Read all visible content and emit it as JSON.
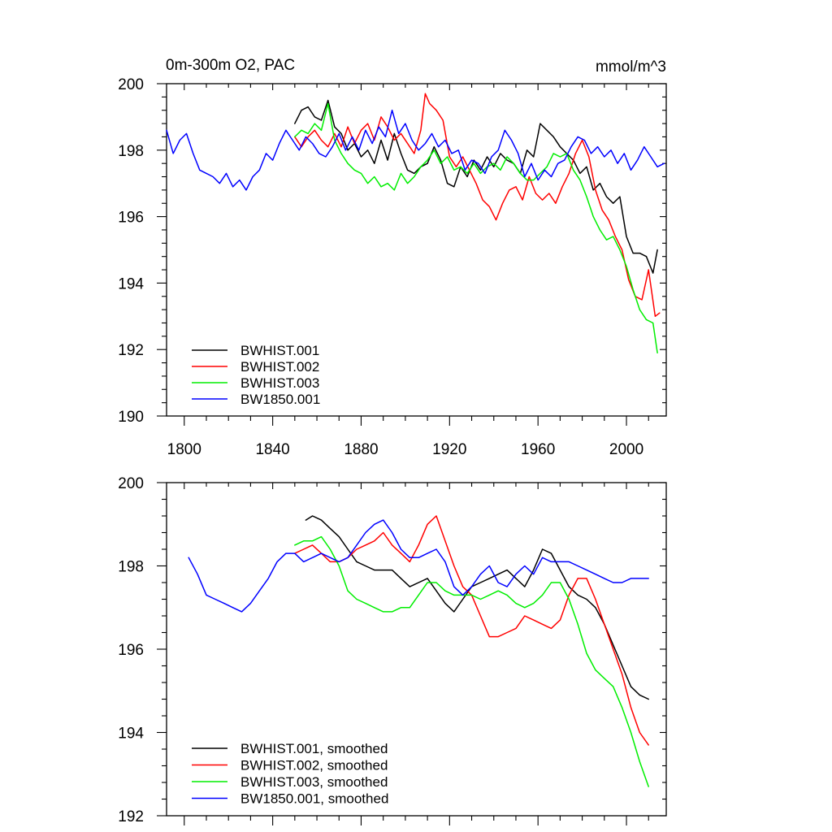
{
  "chart_data": [
    {
      "type": "line",
      "title": "0m-300m O2, PAC",
      "units": "mmol/m^3",
      "xlim": [
        1792,
        2018
      ],
      "ylim": [
        190,
        200
      ],
      "x_ticks": [
        1800,
        1840,
        1880,
        1920,
        1960,
        2000
      ],
      "y_ticks": [
        190,
        192,
        194,
        196,
        198,
        200
      ],
      "x_tick_labels": [
        "1800",
        "1840",
        "1880",
        "1920",
        "1960",
        "2000"
      ],
      "y_tick_labels": [
        "190",
        "192",
        "194",
        "196",
        "198",
        "200"
      ],
      "grid": false,
      "legend_position": "bottom-left",
      "series": [
        {
          "name": "BWHIST.001",
          "color": "#000000",
          "x": [
            1850,
            1853,
            1856,
            1859,
            1862,
            1865,
            1868,
            1871,
            1874,
            1877,
            1880,
            1883,
            1886,
            1889,
            1892,
            1895,
            1898,
            1901,
            1904,
            1907,
            1910,
            1913,
            1916,
            1919,
            1922,
            1925,
            1928,
            1931,
            1934,
            1937,
            1940,
            1943,
            1946,
            1949,
            1952,
            1955,
            1958,
            1961,
            1964,
            1967,
            1970,
            1973,
            1976,
            1979,
            1982,
            1985,
            1988,
            1991,
            1994,
            1997,
            2000,
            2003,
            2006,
            2009,
            2012,
            2014
          ],
          "y": [
            198.8,
            199.2,
            199.3,
            199.0,
            198.9,
            199.5,
            198.7,
            198.5,
            198.0,
            198.2,
            197.8,
            198.0,
            197.6,
            198.3,
            197.7,
            198.5,
            197.9,
            197.4,
            197.3,
            197.5,
            197.6,
            198.1,
            197.7,
            197.0,
            196.9,
            197.5,
            197.2,
            197.7,
            197.4,
            197.8,
            197.5,
            197.9,
            197.7,
            197.6,
            197.3,
            198.0,
            197.8,
            198.8,
            198.6,
            198.4,
            198.1,
            197.9,
            197.7,
            197.3,
            197.5,
            196.8,
            197.0,
            196.6,
            196.4,
            196.6,
            195.4,
            194.9,
            194.9,
            194.8,
            194.3,
            195.0
          ]
        },
        {
          "name": "BWHIST.002",
          "color": "#ff0000",
          "x": [
            1850,
            1853,
            1856,
            1859,
            1862,
            1865,
            1868,
            1871,
            1874,
            1877,
            1880,
            1883,
            1886,
            1889,
            1892,
            1895,
            1898,
            1901,
            1904,
            1907,
            1909,
            1911,
            1914,
            1917,
            1920,
            1923,
            1926,
            1929,
            1932,
            1935,
            1938,
            1941,
            1944,
            1947,
            1950,
            1953,
            1956,
            1959,
            1962,
            1965,
            1968,
            1971,
            1974,
            1977,
            1980,
            1983,
            1986,
            1989,
            1992,
            1995,
            1998,
            2001,
            2004,
            2007,
            2010,
            2013,
            2015
          ],
          "y": [
            198.4,
            198.1,
            198.4,
            198.6,
            198.3,
            198.1,
            198.5,
            198.1,
            198.7,
            198.2,
            198.6,
            198.8,
            198.3,
            199.0,
            198.7,
            198.3,
            198.5,
            198.2,
            197.9,
            198.6,
            199.7,
            199.4,
            199.2,
            198.9,
            197.8,
            197.5,
            197.8,
            197.4,
            197.0,
            196.5,
            196.3,
            195.9,
            196.4,
            196.8,
            196.9,
            196.5,
            197.2,
            196.7,
            196.5,
            196.7,
            196.4,
            196.9,
            197.3,
            197.9,
            198.3,
            197.8,
            196.8,
            196.2,
            195.9,
            195.4,
            195.0,
            194.1,
            193.6,
            193.5,
            194.4,
            193.0,
            193.1
          ]
        },
        {
          "name": "BWHIST.003",
          "color": "#00ee00",
          "x": [
            1850,
            1853,
            1856,
            1859,
            1862,
            1865,
            1868,
            1871,
            1874,
            1877,
            1880,
            1883,
            1886,
            1889,
            1892,
            1895,
            1898,
            1901,
            1904,
            1907,
            1910,
            1913,
            1916,
            1919,
            1922,
            1925,
            1928,
            1931,
            1934,
            1937,
            1940,
            1943,
            1946,
            1949,
            1952,
            1955,
            1958,
            1961,
            1964,
            1967,
            1970,
            1973,
            1976,
            1979,
            1982,
            1985,
            1988,
            1991,
            1994,
            1997,
            2000,
            2003,
            2006,
            2009,
            2012,
            2014
          ],
          "y": [
            198.4,
            198.6,
            198.5,
            198.8,
            198.6,
            199.4,
            198.3,
            197.9,
            197.6,
            197.4,
            197.3,
            197.0,
            197.2,
            196.9,
            197.0,
            196.8,
            197.3,
            197.0,
            197.2,
            197.5,
            197.7,
            198.0,
            197.6,
            197.8,
            197.4,
            197.5,
            197.3,
            197.6,
            197.3,
            197.5,
            197.6,
            197.4,
            197.8,
            197.6,
            197.3,
            197.1,
            197.1,
            197.3,
            197.5,
            197.9,
            197.8,
            197.9,
            197.4,
            197.1,
            196.6,
            196.0,
            195.6,
            195.3,
            195.4,
            195.0,
            194.5,
            193.8,
            193.2,
            192.9,
            192.8,
            191.9
          ]
        },
        {
          "name": "BW1850.001",
          "color": "#0000ff",
          "x": [
            1792,
            1795,
            1798,
            1801,
            1804,
            1807,
            1810,
            1813,
            1816,
            1819,
            1822,
            1825,
            1828,
            1831,
            1834,
            1837,
            1840,
            1843,
            1846,
            1849,
            1852,
            1855,
            1858,
            1861,
            1864,
            1867,
            1870,
            1873,
            1876,
            1879,
            1882,
            1885,
            1888,
            1891,
            1894,
            1897,
            1900,
            1903,
            1906,
            1909,
            1912,
            1915,
            1918,
            1921,
            1924,
            1927,
            1930,
            1933,
            1936,
            1939,
            1942,
            1945,
            1948,
            1951,
            1954,
            1957,
            1960,
            1963,
            1966,
            1969,
            1972,
            1975,
            1978,
            1981,
            1984,
            1987,
            1990,
            1993,
            1996,
            1999,
            2002,
            2005,
            2008,
            2011,
            2014,
            2017
          ],
          "y": [
            198.6,
            197.9,
            198.3,
            198.5,
            197.9,
            197.4,
            197.3,
            197.2,
            197.0,
            197.3,
            196.9,
            197.1,
            196.8,
            197.2,
            197.4,
            197.9,
            197.7,
            198.2,
            198.6,
            198.3,
            198.0,
            198.4,
            198.2,
            197.9,
            197.8,
            198.1,
            198.5,
            198.0,
            198.4,
            198.0,
            198.6,
            198.2,
            198.7,
            198.4,
            199.2,
            198.5,
            198.8,
            198.3,
            198.0,
            198.2,
            198.5,
            198.1,
            198.3,
            197.9,
            198.0,
            197.4,
            197.7,
            197.6,
            197.3,
            197.8,
            198.0,
            198.6,
            198.3,
            197.9,
            197.2,
            197.6,
            197.1,
            197.4,
            197.2,
            197.6,
            197.7,
            198.1,
            198.4,
            198.3,
            197.9,
            198.1,
            197.8,
            198.0,
            197.6,
            197.9,
            197.4,
            197.7,
            198.1,
            197.8,
            197.5,
            197.6
          ]
        }
      ]
    },
    {
      "type": "line",
      "xlim": [
        1792,
        2018
      ],
      "ylim": [
        192,
        200
      ],
      "x_ticks": [
        1800,
        1840,
        1880,
        1920,
        1960,
        2000
      ],
      "y_ticks": [
        192,
        194,
        196,
        198,
        200
      ],
      "y_tick_labels": [
        "192",
        "194",
        "196",
        "198",
        "200"
      ],
      "grid": false,
      "legend_position": "bottom-left",
      "series": [
        {
          "name": "BWHIST.001, smoothed",
          "color": "#000000",
          "x": [
            1855,
            1858,
            1862,
            1866,
            1870,
            1874,
            1878,
            1882,
            1886,
            1890,
            1894,
            1898,
            1902,
            1906,
            1910,
            1914,
            1918,
            1922,
            1926,
            1930,
            1934,
            1938,
            1942,
            1946,
            1950,
            1954,
            1958,
            1962,
            1966,
            1970,
            1974,
            1978,
            1982,
            1986,
            1990,
            1994,
            1998,
            2002,
            2006,
            2010
          ],
          "y": [
            199.1,
            199.2,
            199.1,
            198.9,
            198.7,
            198.4,
            198.1,
            198.0,
            197.9,
            197.9,
            197.9,
            197.7,
            197.5,
            197.6,
            197.7,
            197.4,
            197.1,
            196.9,
            197.2,
            197.5,
            197.6,
            197.7,
            197.8,
            197.9,
            197.7,
            197.5,
            197.9,
            198.4,
            198.3,
            197.9,
            197.5,
            197.3,
            197.2,
            197.0,
            196.6,
            196.1,
            195.6,
            195.1,
            194.9,
            194.8
          ]
        },
        {
          "name": "BWHIST.002, smoothed",
          "color": "#ff0000",
          "x": [
            1850,
            1854,
            1858,
            1862,
            1866,
            1870,
            1874,
            1878,
            1882,
            1886,
            1890,
            1894,
            1898,
            1902,
            1906,
            1910,
            1914,
            1918,
            1922,
            1926,
            1930,
            1934,
            1938,
            1942,
            1946,
            1950,
            1954,
            1958,
            1962,
            1966,
            1970,
            1974,
            1978,
            1982,
            1986,
            1990,
            1994,
            1998,
            2002,
            2006,
            2010
          ],
          "y": [
            198.3,
            198.4,
            198.5,
            198.3,
            198.1,
            198.1,
            198.2,
            198.4,
            198.5,
            198.6,
            198.8,
            198.5,
            198.3,
            198.1,
            198.5,
            199.0,
            199.2,
            198.6,
            198.0,
            197.5,
            197.3,
            196.8,
            196.3,
            196.3,
            196.4,
            196.5,
            196.8,
            196.7,
            196.6,
            196.5,
            196.7,
            197.3,
            197.7,
            197.7,
            197.2,
            196.6,
            196.0,
            195.4,
            194.6,
            194.0,
            193.7
          ]
        },
        {
          "name": "BWHIST.003, smoothed",
          "color": "#00ee00",
          "x": [
            1850,
            1854,
            1858,
            1862,
            1866,
            1870,
            1874,
            1878,
            1882,
            1886,
            1890,
            1894,
            1898,
            1902,
            1906,
            1910,
            1914,
            1918,
            1922,
            1926,
            1930,
            1934,
            1938,
            1942,
            1946,
            1950,
            1954,
            1958,
            1962,
            1966,
            1970,
            1974,
            1978,
            1982,
            1986,
            1990,
            1994,
            1998,
            2002,
            2006,
            2010
          ],
          "y": [
            198.5,
            198.6,
            198.6,
            198.7,
            198.4,
            198.0,
            197.4,
            197.2,
            197.1,
            197.0,
            196.9,
            196.9,
            197.0,
            197.0,
            197.3,
            197.6,
            197.6,
            197.4,
            197.3,
            197.3,
            197.3,
            197.2,
            197.3,
            197.4,
            197.3,
            197.1,
            197.0,
            197.1,
            197.3,
            197.6,
            197.6,
            197.2,
            196.6,
            195.9,
            195.5,
            195.3,
            195.1,
            194.6,
            194.0,
            193.3,
            192.7
          ]
        },
        {
          "name": "BW1850.001, smoothed",
          "color": "#0000ff",
          "x": [
            1802,
            1806,
            1810,
            1814,
            1818,
            1822,
            1826,
            1830,
            1834,
            1838,
            1842,
            1846,
            1850,
            1854,
            1858,
            1862,
            1866,
            1870,
            1874,
            1878,
            1882,
            1886,
            1890,
            1894,
            1898,
            1902,
            1906,
            1910,
            1914,
            1918,
            1922,
            1926,
            1930,
            1934,
            1938,
            1942,
            1946,
            1950,
            1954,
            1958,
            1962,
            1966,
            1970,
            1974,
            1978,
            1982,
            1986,
            1990,
            1994,
            1998,
            2002,
            2006,
            2010
          ],
          "y": [
            198.2,
            197.8,
            197.3,
            197.2,
            197.1,
            197.0,
            196.9,
            197.1,
            197.4,
            197.7,
            198.1,
            198.3,
            198.3,
            198.1,
            198.2,
            198.3,
            198.2,
            198.1,
            198.2,
            198.5,
            198.8,
            199.0,
            199.1,
            198.8,
            198.4,
            198.2,
            198.2,
            198.3,
            198.4,
            198.1,
            197.5,
            197.3,
            197.5,
            197.8,
            198.0,
            197.6,
            197.5,
            197.8,
            198.0,
            197.8,
            198.2,
            198.1,
            198.1,
            198.1,
            198.0,
            197.9,
            197.8,
            197.7,
            197.6,
            197.6,
            197.7,
            197.7,
            197.7
          ]
        }
      ]
    }
  ]
}
